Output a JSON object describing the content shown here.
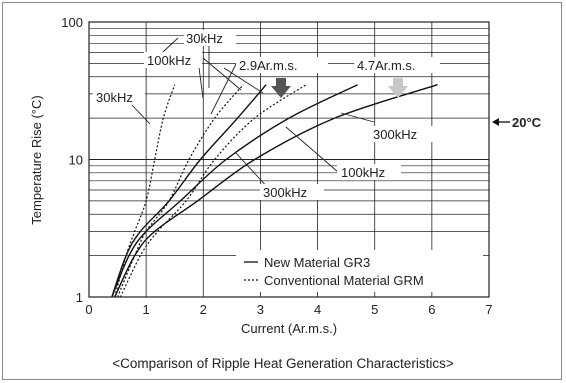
{
  "chart_data": {
    "type": "line",
    "caption": "<Comparison of Ripple Heat Generation Characteristics>",
    "xlabel": "Current (Ar.m.s.)",
    "ylabel": "Temperature Rise (°C)",
    "xlim": [
      0,
      7
    ],
    "ylim": [
      1,
      100
    ],
    "yscale": "log",
    "grid": true,
    "x_ticks": [
      "0",
      "1",
      "2",
      "3",
      "4",
      "5",
      "6",
      "7"
    ],
    "y_ticks": [
      "1",
      "10",
      "100"
    ],
    "legend": {
      "placement": "bottom-right",
      "entries": [
        {
          "label": "New Material GR3",
          "style": "solid"
        },
        {
          "label": "Conventional Material GRM",
          "style": "dotted"
        }
      ]
    },
    "series": [
      {
        "freq": "30kHz",
        "style": "dotted",
        "points": [
          [
            0.45,
            1
          ],
          [
            0.65,
            2
          ],
          [
            0.8,
            3
          ],
          [
            1.0,
            5
          ],
          [
            1.15,
            10
          ],
          [
            1.3,
            20
          ],
          [
            1.5,
            35
          ]
        ]
      },
      {
        "freq": "100kHz",
        "style": "dotted",
        "points": [
          [
            0.5,
            1
          ],
          [
            0.8,
            2
          ],
          [
            1.0,
            3
          ],
          [
            1.4,
            5
          ],
          [
            1.75,
            10
          ],
          [
            2.2,
            20
          ],
          [
            2.7,
            35
          ]
        ]
      },
      {
        "freq": "300kHz",
        "style": "dotted",
        "points": [
          [
            0.55,
            1
          ],
          [
            0.9,
            2
          ],
          [
            1.2,
            3
          ],
          [
            1.7,
            5
          ],
          [
            2.2,
            10
          ],
          [
            2.9,
            20
          ],
          [
            3.8,
            35
          ]
        ]
      },
      {
        "freq": "30kHz",
        "style": "solid",
        "points": [
          [
            0.4,
            1
          ],
          [
            0.65,
            2
          ],
          [
            0.9,
            3
          ],
          [
            1.4,
            5
          ],
          [
            1.95,
            10
          ],
          [
            2.6,
            20
          ],
          [
            3.1,
            35
          ]
        ]
      },
      {
        "freq": "100kHz",
        "style": "solid",
        "points": [
          [
            0.4,
            1
          ],
          [
            0.7,
            2
          ],
          [
            1.0,
            3
          ],
          [
            1.6,
            5
          ],
          [
            2.4,
            10
          ],
          [
            3.5,
            20
          ],
          [
            4.7,
            35
          ]
        ]
      },
      {
        "freq": "300kHz",
        "style": "solid",
        "points": [
          [
            0.45,
            1
          ],
          [
            0.8,
            2
          ],
          [
            1.15,
            3
          ],
          [
            1.9,
            5
          ],
          [
            2.9,
            10
          ],
          [
            4.3,
            20
          ],
          [
            6.1,
            35
          ]
        ]
      }
    ],
    "annotations": {
      "freq_labels": [
        "30kHz",
        "100kHz",
        "30kHz",
        "300kHz",
        "100kHz",
        "300kHz"
      ],
      "current_gr3": "2.9Ar.m.s.",
      "current_grm": "4.7Ar.m.s.",
      "ambient": "20°C",
      "arrow_colors": {
        "gr3": "#555555",
        "grm": "#c8c8c8"
      }
    }
  }
}
